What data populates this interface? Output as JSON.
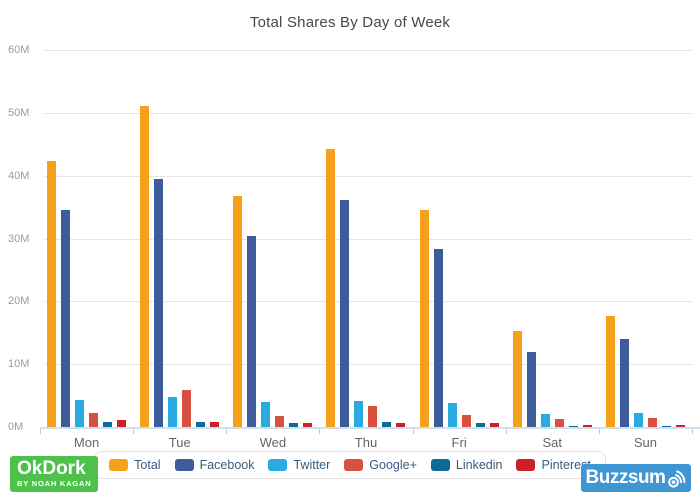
{
  "chart_data": {
    "type": "bar",
    "title": "Total Shares By Day of Week",
    "categories": [
      "Mon",
      "Tue",
      "Wed",
      "Thu",
      "Fri",
      "Sat",
      "Sun"
    ],
    "series": [
      {
        "name": "Total",
        "color": "#f5a11c",
        "values": [
          42.3,
          51.1,
          36.8,
          44.3,
          34.6,
          15.3,
          17.6
        ]
      },
      {
        "name": "Facebook",
        "color": "#3e5c9a",
        "values": [
          34.5,
          39.4,
          30.4,
          36.1,
          28.4,
          11.9,
          14.0
        ]
      },
      {
        "name": "Twitter",
        "color": "#29abe2",
        "values": [
          4.3,
          4.8,
          4.0,
          4.2,
          3.8,
          2.0,
          2.3
        ]
      },
      {
        "name": "Google+",
        "color": "#d8503f",
        "values": [
          2.3,
          5.9,
          1.7,
          3.4,
          1.9,
          1.2,
          1.4
        ]
      },
      {
        "name": "Linkedin",
        "color": "#0e6a97",
        "values": [
          0.8,
          0.8,
          0.7,
          0.8,
          0.6,
          0.15,
          0.15
        ]
      },
      {
        "name": "Pinterest",
        "color": "#cb2027",
        "values": [
          1.1,
          0.8,
          0.7,
          0.6,
          0.6,
          0.3,
          0.35
        ]
      }
    ],
    "xlabel": "",
    "ylabel": "",
    "unit": "millions of shares",
    "ylim": [
      0,
      60
    ],
    "y_ticks": [
      "60M",
      "50M",
      "40M",
      "30M",
      "20M",
      "10M",
      "0M"
    ],
    "grid": true,
    "legend_position": "bottom"
  },
  "logos": {
    "okdork": {
      "title": "OkDork",
      "subtitle": "BY NOAH KAGAN",
      "bg": "#4cc24a"
    },
    "buzzsumo": {
      "text": "Buzzsum",
      "bg": "#3e97d3"
    }
  }
}
